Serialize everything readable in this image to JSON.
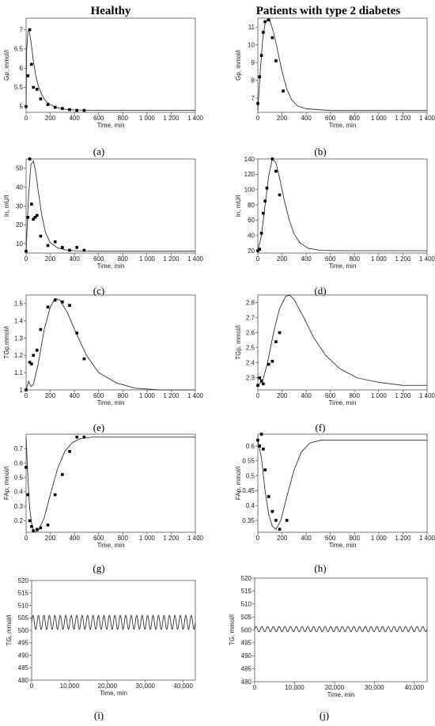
{
  "column_titles": [
    "Healthy",
    "Patients with type 2 diabetes"
  ],
  "chart_data": [
    {
      "type": "scatter",
      "panel": "(a)",
      "ylabel": "Gp, mmol/l",
      "xlabel": "Time, min",
      "xlim": [
        0,
        1400
      ],
      "ylim": [
        4.85,
        7.3
      ],
      "x_ticks": [
        0,
        200,
        400,
        600,
        800,
        1000,
        1200,
        1400
      ],
      "x_tick_labels": [
        "0",
        "200",
        "400",
        "600",
        "800",
        "1 000",
        "1 200",
        "1 400"
      ],
      "y_ticks": [
        5,
        5.5,
        6,
        6.5,
        7
      ],
      "y_tick_labels": [
        "5",
        "5.5",
        "6",
        "6.5",
        "7"
      ],
      "points": [
        [
          0,
          5.0
        ],
        [
          15,
          5.8
        ],
        [
          30,
          7.0
        ],
        [
          45,
          6.1
        ],
        [
          60,
          5.5
        ],
        [
          90,
          5.45
        ],
        [
          120,
          5.2
        ],
        [
          180,
          5.05
        ],
        [
          240,
          4.98
        ],
        [
          300,
          4.95
        ],
        [
          360,
          4.92
        ],
        [
          420,
          4.9
        ],
        [
          480,
          4.9
        ]
      ],
      "model_curve": [
        [
          0,
          5.0
        ],
        [
          5,
          6.5
        ],
        [
          15,
          6.95
        ],
        [
          25,
          7.0
        ],
        [
          40,
          6.7
        ],
        [
          60,
          6.2
        ],
        [
          80,
          5.8
        ],
        [
          100,
          5.55
        ],
        [
          130,
          5.3
        ],
        [
          160,
          5.15
        ],
        [
          200,
          5.05
        ],
        [
          260,
          4.97
        ],
        [
          320,
          4.93
        ],
        [
          400,
          4.91
        ],
        [
          600,
          4.9
        ],
        [
          1400,
          4.9
        ]
      ]
    },
    {
      "type": "scatter",
      "panel": "(b)",
      "ylabel": "Gp, mmol/l",
      "xlabel": "Time, min",
      "xlim": [
        0,
        1400
      ],
      "ylim": [
        6.2,
        11.5
      ],
      "x_ticks": [
        0,
        200,
        400,
        600,
        800,
        1000,
        1200,
        1400
      ],
      "x_tick_labels": [
        "0",
        "200",
        "400",
        "600",
        "800",
        "1 000",
        "1 200",
        "1 400"
      ],
      "y_ticks": [
        7,
        8,
        9,
        10,
        11
      ],
      "y_tick_labels": [
        "7",
        "8",
        "9",
        "10",
        "11"
      ],
      "points": [
        [
          0,
          6.7
        ],
        [
          15,
          8.2
        ],
        [
          30,
          9.4
        ],
        [
          45,
          10.7
        ],
        [
          60,
          11.3
        ],
        [
          90,
          11.4
        ],
        [
          120,
          10.4
        ],
        [
          150,
          9.1
        ],
        [
          210,
          7.4
        ]
      ],
      "model_curve": [
        [
          0,
          6.3
        ],
        [
          20,
          8.5
        ],
        [
          40,
          10.3
        ],
        [
          60,
          11.2
        ],
        [
          80,
          11.45
        ],
        [
          100,
          11.35
        ],
        [
          130,
          10.7
        ],
        [
          160,
          9.8
        ],
        [
          200,
          8.5
        ],
        [
          240,
          7.5
        ],
        [
          280,
          6.9
        ],
        [
          330,
          6.55
        ],
        [
          400,
          6.4
        ],
        [
          600,
          6.3
        ],
        [
          1400,
          6.3
        ]
      ]
    },
    {
      "type": "scatter",
      "panel": "(c)",
      "ylabel": "In, mU/l",
      "xlabel": "Time, min",
      "xlim": [
        0,
        1400
      ],
      "ylim": [
        5,
        55
      ],
      "x_ticks": [
        0,
        200,
        400,
        600,
        800,
        1000,
        1200,
        1400
      ],
      "x_tick_labels": [
        "0",
        "200",
        "400",
        "600",
        "800",
        "1 000",
        "1 200",
        "1 400"
      ],
      "y_ticks": [
        10,
        20,
        30,
        40,
        50
      ],
      "y_tick_labels": [
        "10",
        "20",
        "30",
        "40",
        "50"
      ],
      "points": [
        [
          0,
          6
        ],
        [
          15,
          24
        ],
        [
          30,
          55
        ],
        [
          45,
          31
        ],
        [
          60,
          23
        ],
        [
          75,
          24
        ],
        [
          90,
          25
        ],
        [
          120,
          14
        ],
        [
          180,
          9
        ],
        [
          240,
          11
        ],
        [
          300,
          8
        ],
        [
          360,
          6.5
        ],
        [
          420,
          8
        ],
        [
          480,
          6.5
        ]
      ],
      "model_curve": [
        [
          0,
          6
        ],
        [
          20,
          35
        ],
        [
          40,
          52
        ],
        [
          60,
          54
        ],
        [
          80,
          48
        ],
        [
          100,
          38
        ],
        [
          130,
          25
        ],
        [
          160,
          16
        ],
        [
          200,
          10.5
        ],
        [
          260,
          7.8
        ],
        [
          330,
          6.6
        ],
        [
          420,
          6.2
        ],
        [
          600,
          6
        ],
        [
          1400,
          6
        ]
      ]
    },
    {
      "type": "scatter",
      "panel": "(d)",
      "ylabel": "In, mU/l",
      "xlabel": "Time, min",
      "xlim": [
        0,
        1400
      ],
      "ylim": [
        17,
        140
      ],
      "x_ticks": [
        0,
        200,
        400,
        600,
        800,
        1000,
        1200,
        1400
      ],
      "x_tick_labels": [
        "0",
        "200",
        "400",
        "600",
        "800",
        "1 000",
        "1 200",
        "1 400"
      ],
      "y_ticks": [
        20,
        40,
        60,
        80,
        100,
        120,
        140
      ],
      "y_tick_labels": [
        "20",
        "40",
        "60",
        "80",
        "100",
        "120",
        "140"
      ],
      "points": [
        [
          0,
          20
        ],
        [
          15,
          22
        ],
        [
          30,
          43
        ],
        [
          45,
          69
        ],
        [
          60,
          85
        ],
        [
          75,
          102
        ],
        [
          120,
          140
        ],
        [
          150,
          124
        ],
        [
          180,
          93
        ]
      ],
      "model_curve": [
        [
          0,
          20
        ],
        [
          30,
          40
        ],
        [
          60,
          80
        ],
        [
          90,
          118
        ],
        [
          120,
          140
        ],
        [
          150,
          135
        ],
        [
          180,
          115
        ],
        [
          220,
          85
        ],
        [
          260,
          60
        ],
        [
          300,
          42
        ],
        [
          350,
          30
        ],
        [
          420,
          23
        ],
        [
          520,
          20.5
        ],
        [
          700,
          20
        ],
        [
          1400,
          20
        ]
      ]
    },
    {
      "type": "scatter",
      "panel": "(e)",
      "ylabel": "TGp,mmol/l",
      "xlabel": "Time, min",
      "xlim": [
        0,
        1400
      ],
      "ylim": [
        1.0,
        1.55
      ],
      "x_ticks": [
        0,
        200,
        400,
        600,
        800,
        1000,
        1200,
        1400
      ],
      "x_tick_labels": [
        "0",
        "200",
        "400",
        "600",
        "800",
        "1 000",
        "1 200",
        "1 400"
      ],
      "y_ticks": [
        1.0,
        1.1,
        1.2,
        1.3,
        1.4,
        1.5
      ],
      "y_tick_labels": [
        "1",
        "1.1",
        "1.2",
        "1.3",
        "1.4",
        "1.5"
      ],
      "points": [
        [
          0,
          1.0
        ],
        [
          30,
          1.16
        ],
        [
          45,
          1.15
        ],
        [
          60,
          1.2
        ],
        [
          90,
          1.23
        ],
        [
          120,
          1.35
        ],
        [
          180,
          1.48
        ],
        [
          240,
          1.52
        ],
        [
          300,
          1.51
        ],
        [
          360,
          1.49
        ],
        [
          420,
          1.33
        ],
        [
          480,
          1.18
        ]
      ],
      "model_curve": [
        [
          0,
          1.0
        ],
        [
          20,
          1.05
        ],
        [
          40,
          1.02
        ],
        [
          60,
          1.03
        ],
        [
          100,
          1.15
        ],
        [
          150,
          1.35
        ],
        [
          200,
          1.48
        ],
        [
          240,
          1.53
        ],
        [
          280,
          1.52
        ],
        [
          340,
          1.45
        ],
        [
          420,
          1.32
        ],
        [
          500,
          1.2
        ],
        [
          600,
          1.1
        ],
        [
          750,
          1.04
        ],
        [
          900,
          1.01
        ],
        [
          1100,
          1.0
        ],
        [
          1400,
          1.0
        ]
      ]
    },
    {
      "type": "scatter",
      "panel": "(f)",
      "ylabel": "TGp, mmol/l",
      "xlabel": "Time, min",
      "xlim": [
        0,
        1400
      ],
      "ylim": [
        2.22,
        2.85
      ],
      "x_ticks": [
        0,
        200,
        400,
        600,
        800,
        1000,
        1200,
        1400
      ],
      "x_tick_labels": [
        "0",
        "200",
        "400",
        "600",
        "800",
        "1 000",
        "1 200",
        "1 400"
      ],
      "y_ticks": [
        2.3,
        2.4,
        2.5,
        2.6,
        2.7,
        2.8
      ],
      "y_tick_labels": [
        "2.3",
        "2.4",
        "2.5",
        "2.6",
        "2.7",
        "2.8"
      ],
      "points": [
        [
          0,
          2.25
        ],
        [
          15,
          2.3
        ],
        [
          30,
          2.28
        ],
        [
          45,
          2.26
        ],
        [
          90,
          2.39
        ],
        [
          120,
          2.41
        ],
        [
          150,
          2.54
        ],
        [
          180,
          2.6
        ]
      ],
      "model_curve": [
        [
          0,
          2.25
        ],
        [
          40,
          2.28
        ],
        [
          80,
          2.4
        ],
        [
          130,
          2.6
        ],
        [
          180,
          2.76
        ],
        [
          230,
          2.84
        ],
        [
          260,
          2.85
        ],
        [
          300,
          2.82
        ],
        [
          380,
          2.7
        ],
        [
          460,
          2.57
        ],
        [
          560,
          2.45
        ],
        [
          680,
          2.36
        ],
        [
          820,
          2.3
        ],
        [
          1000,
          2.27
        ],
        [
          1200,
          2.25
        ],
        [
          1400,
          2.25
        ]
      ]
    },
    {
      "type": "scatter",
      "panel": "(g)",
      "ylabel": "FAp, mmol/l",
      "xlabel": "Time, min",
      "xlim": [
        0,
        1400
      ],
      "ylim": [
        0.12,
        0.8
      ],
      "x_ticks": [
        0,
        200,
        400,
        600,
        800,
        1000,
        1200,
        1400
      ],
      "x_tick_labels": [
        "0",
        "200",
        "400",
        "600",
        "800",
        "1 000",
        "1 200",
        "1 400"
      ],
      "y_ticks": [
        0.2,
        0.3,
        0.4,
        0.5,
        0.6,
        0.7
      ],
      "y_tick_labels": [
        "0.2",
        "0.3",
        "0.4",
        "0.5",
        "0.6",
        "0.7"
      ],
      "points": [
        [
          0,
          0.57
        ],
        [
          15,
          0.38
        ],
        [
          30,
          0.2
        ],
        [
          45,
          0.16
        ],
        [
          60,
          0.13
        ],
        [
          90,
          0.14
        ],
        [
          120,
          0.15
        ],
        [
          180,
          0.17
        ],
        [
          240,
          0.38
        ],
        [
          300,
          0.52
        ],
        [
          360,
          0.68
        ],
        [
          420,
          0.78
        ],
        [
          480,
          0.78
        ]
      ],
      "model_curve": [
        [
          0,
          0.78
        ],
        [
          15,
          0.5
        ],
        [
          30,
          0.28
        ],
        [
          50,
          0.16
        ],
        [
          70,
          0.12
        ],
        [
          100,
          0.13
        ],
        [
          150,
          0.22
        ],
        [
          200,
          0.38
        ],
        [
          260,
          0.56
        ],
        [
          320,
          0.68
        ],
        [
          380,
          0.74
        ],
        [
          450,
          0.77
        ],
        [
          550,
          0.78
        ],
        [
          1400,
          0.78
        ]
      ]
    },
    {
      "type": "scatter",
      "panel": "(h)",
      "ylabel": "FAp, mmol/l",
      "xlabel": "Time, min",
      "xlim": [
        0,
        1400
      ],
      "ylim": [
        0.31,
        0.64
      ],
      "x_ticks": [
        0,
        200,
        400,
        600,
        800,
        1000,
        1200,
        1400
      ],
      "x_tick_labels": [
        "0",
        "200",
        "400",
        "600",
        "800",
        "1 000",
        "1 200",
        "1 400"
      ],
      "y_ticks": [
        0.35,
        0.4,
        0.45,
        0.5,
        0.55,
        0.6
      ],
      "y_tick_labels": [
        "0.35",
        "0.4",
        "0.45",
        "0.5",
        "0.55",
        "0.6"
      ],
      "points": [
        [
          0,
          0.62
        ],
        [
          15,
          0.6
        ],
        [
          30,
          0.64
        ],
        [
          45,
          0.59
        ],
        [
          60,
          0.52
        ],
        [
          90,
          0.43
        ],
        [
          120,
          0.38
        ],
        [
          150,
          0.35
        ],
        [
          180,
          0.32
        ],
        [
          240,
          0.35
        ]
      ],
      "model_curve": [
        [
          0,
          0.62
        ],
        [
          30,
          0.56
        ],
        [
          60,
          0.45
        ],
        [
          90,
          0.37
        ],
        [
          120,
          0.33
        ],
        [
          150,
          0.32
        ],
        [
          190,
          0.35
        ],
        [
          240,
          0.43
        ],
        [
          300,
          0.52
        ],
        [
          360,
          0.58
        ],
        [
          430,
          0.61
        ],
        [
          520,
          0.62
        ],
        [
          700,
          0.62
        ],
        [
          1400,
          0.62
        ]
      ]
    },
    {
      "type": "line",
      "panel": "(i)",
      "ylabel": "TG, mmol/l",
      "xlabel": "Time, min",
      "xlim": [
        0,
        43200
      ],
      "ylim": [
        480,
        520
      ],
      "x_ticks": [
        0,
        10000,
        20000,
        30000,
        40000
      ],
      "x_tick_labels": [
        "0",
        "10,000",
        "20,000",
        "30,000",
        "40,000"
      ],
      "y_ticks": [
        480,
        485,
        490,
        495,
        500,
        505,
        510,
        515,
        520
      ],
      "y_tick_labels": [
        "480",
        "485",
        "490",
        "495",
        "500",
        "505",
        "510",
        "515",
        "520"
      ],
      "oscillation": {
        "center": 503.2,
        "amplitude": 2.8,
        "period": 1440
      }
    },
    {
      "type": "line",
      "panel": "(j)",
      "ylabel": "TG, mmol/l",
      "xlabel": "Time, min",
      "xlim": [
        0,
        43200
      ],
      "ylim": [
        480,
        520
      ],
      "x_ticks": [
        0,
        10000,
        20000,
        30000,
        40000
      ],
      "x_tick_labels": [
        "0",
        "10,000",
        "20,000",
        "30,000",
        "40,000"
      ],
      "y_ticks": [
        480,
        485,
        490,
        495,
        500,
        505,
        510,
        515,
        520
      ],
      "y_tick_labels": [
        "480",
        "485",
        "490",
        "495",
        "500",
        "505",
        "510",
        "515",
        "520"
      ],
      "oscillation": {
        "center": 500.3,
        "amplitude": 1.0,
        "period": 1440
      }
    }
  ]
}
